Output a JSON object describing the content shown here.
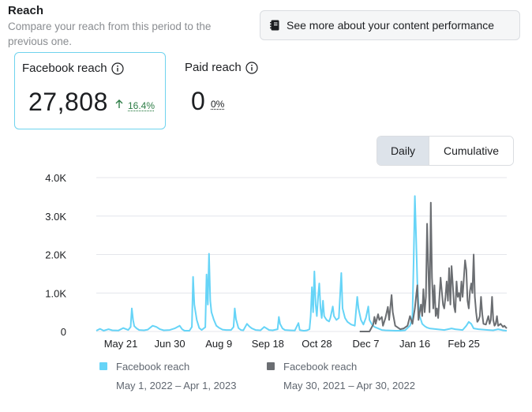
{
  "header": {
    "title": "Reach",
    "subtitle": "Compare your reach from this period to the previous one.",
    "more_button": "See more about your content performance",
    "more_icon": "notebook-icon"
  },
  "cards": {
    "facebook": {
      "label": "Facebook reach",
      "value": "27,808",
      "delta": "16.4%",
      "delta_direction": "up"
    },
    "paid": {
      "label": "Paid reach",
      "value": "0",
      "delta": "0%"
    }
  },
  "toggle": {
    "daily": "Daily",
    "cumulative": "Cumulative",
    "selected": "Daily"
  },
  "colors": {
    "current": "#66d4f7",
    "previous": "#6b6e72",
    "accent_border": "#6fd3ee",
    "up": "#2d7d46"
  },
  "legend": [
    {
      "name": "Facebook reach",
      "range": "May 1, 2022 – Apr 1, 2023"
    },
    {
      "name": "Facebook reach",
      "range": "May 30, 2021 – Apr 30, 2022"
    }
  ],
  "chart_data": {
    "type": "line",
    "y_ticks": [
      "4.0K",
      "3.0K",
      "2.0K",
      "1.0K",
      "0"
    ],
    "ylim": [
      0,
      4000
    ],
    "x_ticks": [
      "May 21",
      "Jun 30",
      "Aug 9",
      "Sep 18",
      "Oct 28",
      "Dec 7",
      "Jan 16",
      "Feb 25"
    ],
    "x_tick_days": [
      20,
      60,
      100,
      140,
      180,
      220,
      260,
      300
    ],
    "x_days": 335,
    "series": [
      {
        "name": "Facebook reach (May 1, 2022 – Apr 1, 2023)",
        "color": "#66d4f7",
        "points": [
          [
            0,
            20
          ],
          [
            3,
            70
          ],
          [
            6,
            20
          ],
          [
            10,
            60
          ],
          [
            13,
            30
          ],
          [
            18,
            25
          ],
          [
            22,
            90
          ],
          [
            26,
            40
          ],
          [
            28,
            120
          ],
          [
            29,
            600
          ],
          [
            30,
            300
          ],
          [
            31,
            140
          ],
          [
            33,
            80
          ],
          [
            35,
            40
          ],
          [
            39,
            30
          ],
          [
            42,
            50
          ],
          [
            46,
            150
          ],
          [
            49,
            120
          ],
          [
            52,
            60
          ],
          [
            55,
            30
          ],
          [
            60,
            40
          ],
          [
            64,
            80
          ],
          [
            68,
            150
          ],
          [
            70,
            60
          ],
          [
            72,
            20
          ],
          [
            76,
            20
          ],
          [
            78,
            120
          ],
          [
            79,
            1420
          ],
          [
            80,
            700
          ],
          [
            82,
            300
          ],
          [
            84,
            90
          ],
          [
            86,
            40
          ],
          [
            89,
            110
          ],
          [
            90,
            1480
          ],
          [
            91,
            700
          ],
          [
            92,
            2020
          ],
          [
            93,
            800
          ],
          [
            94,
            500
          ],
          [
            96,
            300
          ],
          [
            98,
            150
          ],
          [
            100,
            100
          ],
          [
            103,
            50
          ],
          [
            106,
            40
          ],
          [
            110,
            40
          ],
          [
            112,
            120
          ],
          [
            113,
            600
          ],
          [
            114,
            320
          ],
          [
            116,
            90
          ],
          [
            118,
            40
          ],
          [
            120,
            30
          ],
          [
            123,
            200
          ],
          [
            125,
            130
          ],
          [
            127,
            80
          ],
          [
            130,
            40
          ],
          [
            134,
            30
          ],
          [
            137,
            120
          ],
          [
            139,
            80
          ],
          [
            141,
            40
          ],
          [
            144,
            30
          ],
          [
            148,
            60
          ],
          [
            149,
            380
          ],
          [
            150,
            200
          ],
          [
            152,
            80
          ],
          [
            154,
            40
          ],
          [
            158,
            30
          ],
          [
            162,
            25
          ],
          [
            165,
            220
          ],
          [
            166,
            40
          ],
          [
            169,
            20
          ],
          [
            170,
            20
          ],
          [
            172,
            30
          ],
          [
            174,
            60
          ],
          [
            175,
            400
          ],
          [
            176,
            1150
          ],
          [
            177,
            500
          ],
          [
            178,
            1560
          ],
          [
            179,
            700
          ],
          [
            180,
            400
          ],
          [
            181,
            900
          ],
          [
            182,
            1250
          ],
          [
            183,
            600
          ],
          [
            184,
            350
          ],
          [
            185,
            800
          ],
          [
            186,
            400
          ],
          [
            188,
            300
          ],
          [
            190,
            260
          ],
          [
            191,
            350
          ],
          [
            193,
            650
          ],
          [
            194,
            400
          ],
          [
            196,
            300
          ],
          [
            198,
            350
          ],
          [
            200,
            1520
          ],
          [
            201,
            600
          ],
          [
            203,
            350
          ],
          [
            205,
            250
          ],
          [
            208,
            180
          ],
          [
            211,
            150
          ],
          [
            213,
            900
          ],
          [
            214,
            600
          ],
          [
            216,
            300
          ],
          [
            218,
            180
          ],
          [
            220,
            350
          ],
          [
            222,
            650
          ],
          [
            223,
            300
          ],
          [
            225,
            180
          ],
          [
            227,
            120
          ],
          [
            230,
            80
          ],
          [
            233,
            40
          ],
          [
            236,
            30
          ],
          [
            240,
            25
          ],
          [
            244,
            20
          ],
          [
            248,
            20
          ],
          [
            252,
            30
          ],
          [
            256,
            150
          ],
          [
            257,
            250
          ],
          [
            258,
            380
          ],
          [
            259,
            1800
          ],
          [
            260,
            3520
          ],
          [
            261,
            2500
          ],
          [
            262,
            1300
          ],
          [
            263,
            700
          ],
          [
            264,
            400
          ],
          [
            266,
            200
          ],
          [
            268,
            140
          ],
          [
            270,
            100
          ],
          [
            272,
            80
          ],
          [
            275,
            70
          ],
          [
            278,
            60
          ],
          [
            281,
            50
          ],
          [
            284,
            40
          ],
          [
            287,
            60
          ],
          [
            290,
            80
          ],
          [
            293,
            60
          ],
          [
            296,
            50
          ],
          [
            299,
            40
          ],
          [
            302,
            150
          ],
          [
            304,
            250
          ],
          [
            306,
            200
          ],
          [
            308,
            80
          ],
          [
            312,
            60
          ],
          [
            316,
            50
          ],
          [
            320,
            40
          ],
          [
            324,
            30
          ],
          [
            328,
            60
          ],
          [
            332,
            30
          ],
          [
            335,
            20
          ]
        ]
      },
      {
        "name": "Facebook reach (May 30, 2021 – Apr 30, 2022)",
        "color": "#6b6e72",
        "points": [
          [
            215,
            0
          ],
          [
            219,
            0
          ],
          [
            223,
            0
          ],
          [
            226,
            180
          ],
          [
            227,
            380
          ],
          [
            228,
            200
          ],
          [
            230,
            450
          ],
          [
            231,
            300
          ],
          [
            233,
            380
          ],
          [
            234,
            150
          ],
          [
            236,
            350
          ],
          [
            238,
            640
          ],
          [
            239,
            300
          ],
          [
            241,
            950
          ],
          [
            242,
            500
          ],
          [
            244,
            150
          ],
          [
            248,
            60
          ],
          [
            251,
            80
          ],
          [
            254,
            150
          ],
          [
            256,
            400
          ],
          [
            258,
            200
          ],
          [
            260,
            600
          ],
          [
            261,
            900
          ],
          [
            262,
            1200
          ],
          [
            263,
            300
          ],
          [
            265,
            700
          ],
          [
            266,
            400
          ],
          [
            267,
            1100
          ],
          [
            268,
            500
          ],
          [
            269,
            900
          ],
          [
            270,
            2800
          ],
          [
            271,
            1600
          ],
          [
            272,
            500
          ],
          [
            273,
            3350
          ],
          [
            274,
            1400
          ],
          [
            275,
            600
          ],
          [
            276,
            1200
          ],
          [
            277,
            400
          ],
          [
            278,
            600
          ],
          [
            279,
            350
          ],
          [
            281,
            1400
          ],
          [
            282,
            1050
          ],
          [
            283,
            700
          ],
          [
            284,
            600
          ],
          [
            285,
            900
          ],
          [
            286,
            1300
          ],
          [
            287,
            800
          ],
          [
            288,
            1650
          ],
          [
            289,
            700
          ],
          [
            290,
            1700
          ],
          [
            291,
            1200
          ],
          [
            292,
            650
          ],
          [
            293,
            500
          ],
          [
            294,
            1300
          ],
          [
            295,
            900
          ],
          [
            296,
            1000
          ],
          [
            297,
            800
          ],
          [
            298,
            1300
          ],
          [
            299,
            900
          ],
          [
            301,
            1850
          ],
          [
            302,
            1600
          ],
          [
            303,
            800
          ],
          [
            304,
            600
          ],
          [
            305,
            1050
          ],
          [
            306,
            1250
          ],
          [
            307,
            1000
          ],
          [
            308,
            2000
          ],
          [
            309,
            900
          ],
          [
            310,
            500
          ],
          [
            311,
            250
          ],
          [
            312,
            300
          ],
          [
            313,
            400
          ],
          [
            314,
            900
          ],
          [
            315,
            450
          ],
          [
            316,
            200
          ],
          [
            318,
            180
          ],
          [
            320,
            400
          ],
          [
            321,
            200
          ],
          [
            322,
            300
          ],
          [
            323,
            900
          ],
          [
            324,
            300
          ],
          [
            325,
            150
          ],
          [
            326,
            200
          ],
          [
            327,
            400
          ],
          [
            328,
            150
          ],
          [
            330,
            200
          ],
          [
            332,
            120
          ],
          [
            333,
            150
          ],
          [
            335,
            80
          ]
        ]
      }
    ]
  }
}
